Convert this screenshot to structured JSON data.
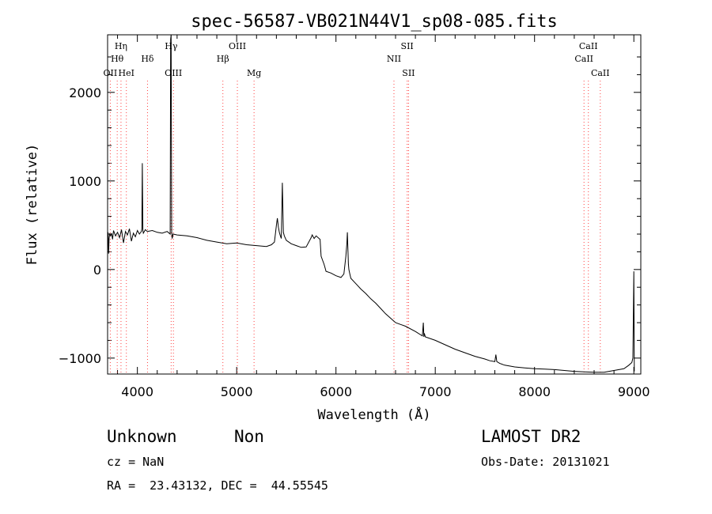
{
  "chart_data": {
    "type": "line",
    "title": "spec-56587-VB021N44V1_sp08-085.fits",
    "xlabel": "Wavelength (Å)",
    "ylabel": "Flux (relative)",
    "xlim": [
      3700,
      9070
    ],
    "ylim": [
      -1180,
      2650
    ],
    "xticks": [
      4000,
      5000,
      6000,
      7000,
      8000,
      9000
    ],
    "yticks": [
      -1000,
      0,
      1000,
      2000
    ],
    "grid": false,
    "line_markers": [
      {
        "label": "Hη",
        "x": 3835,
        "row": 0
      },
      {
        "label": "Hθ",
        "x": 3797,
        "row": 1
      },
      {
        "label": "OII",
        "x": 3727,
        "row": 2
      },
      {
        "label": "HeI",
        "x": 3889,
        "row": 2
      },
      {
        "label": "Hδ",
        "x": 4102,
        "row": 1
      },
      {
        "label": "Hγ",
        "x": 4340,
        "row": 0
      },
      {
        "label": "OIII",
        "x": 4363,
        "row": 2
      },
      {
        "label": "OIII",
        "x": 5007,
        "row": 0
      },
      {
        "label": "Hβ",
        "x": 4861,
        "row": 1
      },
      {
        "label": "Mg",
        "x": 5175,
        "row": 2
      },
      {
        "label": "SII",
        "x": 6717,
        "row": 0
      },
      {
        "label": "NII",
        "x": 6584,
        "row": 1
      },
      {
        "label": "SII",
        "x": 6731,
        "row": 2
      },
      {
        "label": "CaII",
        "x": 8542,
        "row": 0
      },
      {
        "label": "CaII",
        "x": 8498,
        "row": 1
      },
      {
        "label": "CaII",
        "x": 8662,
        "row": 2
      }
    ],
    "series": [
      {
        "x": [
          3700,
          3705,
          3710,
          3715,
          3720,
          3730,
          3740,
          3750,
          3760,
          3780,
          3800,
          3820,
          3840,
          3860,
          3880,
          3900,
          3920,
          3940,
          3960,
          3980,
          4000,
          4020,
          4040,
          4045,
          4050,
          4055,
          4060,
          4080,
          4100,
          4150,
          4200,
          4250,
          4300,
          4330,
          4335,
          4340,
          4345,
          4350,
          4360,
          4400,
          4500,
          4600,
          4700,
          4800,
          4900,
          5000,
          5100,
          5200,
          5300,
          5350,
          5380,
          5400,
          5410,
          5420,
          5430,
          5440,
          5450,
          5455,
          5460,
          5470,
          5480,
          5500,
          5550,
          5600,
          5650,
          5700,
          5750,
          5760,
          5780,
          5800,
          5840,
          5850,
          5880,
          5890,
          5900,
          5950,
          6000,
          6050,
          6080,
          6100,
          6110,
          6115,
          6120,
          6125,
          6130,
          6140,
          6150,
          6200,
          6250,
          6300,
          6350,
          6400,
          6450,
          6500,
          6550,
          6600,
          6650,
          6700,
          6800,
          6870,
          6880,
          6885,
          6890,
          6900,
          7000,
          7100,
          7200,
          7300,
          7400,
          7500,
          7550,
          7600,
          7610,
          7620,
          7650,
          7700,
          7800,
          7900,
          8000,
          8100,
          8200,
          8300,
          8400,
          8500,
          8600,
          8700,
          8800,
          8900,
          8950,
          8980,
          8990,
          9000,
          9005
        ],
        "values": [
          300,
          420,
          180,
          350,
          400,
          380,
          410,
          340,
          440,
          380,
          420,
          360,
          450,
          300,
          430,
          390,
          460,
          320,
          410,
          370,
          440,
          400,
          430,
          460,
          1200,
          440,
          410,
          450,
          430,
          440,
          420,
          410,
          430,
          400,
          2600,
          2650,
          420,
          350,
          400,
          390,
          380,
          360,
          330,
          310,
          290,
          300,
          280,
          270,
          260,
          280,
          310,
          500,
          580,
          480,
          420,
          380,
          350,
          700,
          980,
          420,
          380,
          330,
          290,
          270,
          250,
          255,
          360,
          390,
          350,
          380,
          340,
          150,
          60,
          20,
          -20,
          -40,
          -70,
          -90,
          -50,
          150,
          300,
          420,
          250,
          60,
          0,
          -50,
          -100,
          -160,
          -220,
          -270,
          -330,
          -380,
          -440,
          -500,
          -550,
          -600,
          -620,
          -640,
          -700,
          -750,
          -600,
          -760,
          -720,
          -760,
          -800,
          -850,
          -900,
          -940,
          -980,
          -1010,
          -1030,
          -1040,
          -960,
          -1040,
          -1060,
          -1080,
          -1100,
          -1110,
          -1120,
          -1125,
          -1130,
          -1140,
          -1150,
          -1155,
          -1160,
          -1160,
          -1140,
          -1120,
          -1080,
          -1050,
          -1000,
          -20,
          -1150
        ]
      }
    ]
  },
  "info": {
    "class_label": "Unknown",
    "subclass_label": "Non",
    "survey_label": "LAMOST DR2",
    "cz_text": "cz = NaN",
    "obs_date_text": "Obs-Date: 20131021",
    "coords_text": "RA =  23.43132, DEC =  44.55545"
  }
}
